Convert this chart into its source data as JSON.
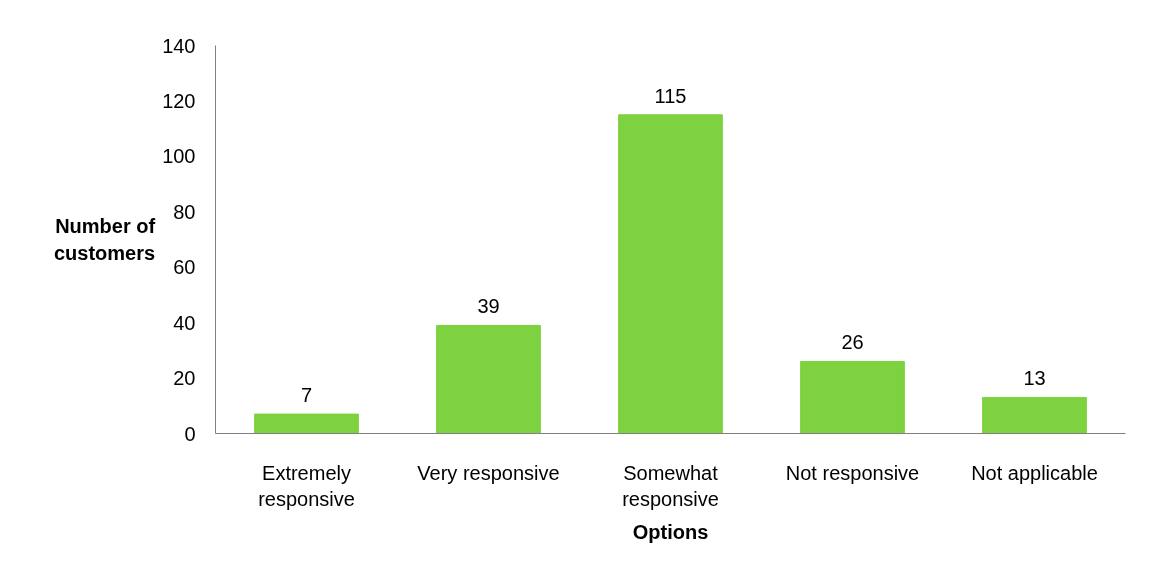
{
  "chart_data": {
    "type": "bar",
    "xlabel": "Options",
    "ylabel": "Number of customers",
    "categories": [
      "Extremely responsive",
      "Very responsive",
      "Somewhat responsive",
      "Not responsive",
      "Not applicable"
    ],
    "values": [
      7,
      39,
      115,
      26,
      13
    ],
    "color": "#7ed13f",
    "ylim": [
      0,
      140
    ],
    "yticks": [
      0,
      20,
      40,
      60,
      80,
      100,
      120,
      140
    ],
    "grid": false,
    "data_labels": true
  }
}
